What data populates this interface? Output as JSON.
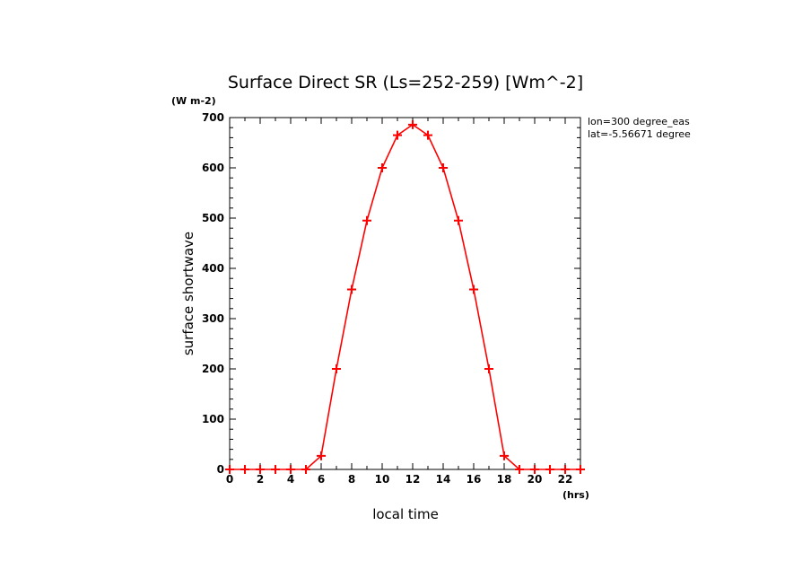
{
  "chart_data": {
    "type": "line",
    "title": "Surface Direct SR (Ls=252-259) [Wm^-2]",
    "y_unit": "(W m-2)",
    "x_unit": "(hrs)",
    "xlabel": "local time",
    "ylabel": "surface shortwave",
    "xlim": [
      0,
      23
    ],
    "ylim": [
      0,
      700
    ],
    "x_ticks": [
      0,
      2,
      4,
      6,
      8,
      10,
      12,
      14,
      16,
      18,
      20,
      22
    ],
    "y_ticks": [
      0,
      100,
      200,
      300,
      400,
      500,
      600,
      700
    ],
    "annotations": [
      "lon=300 degree_eas",
      "lat=-5.56671 degree"
    ],
    "grid": false,
    "series": [
      {
        "color": "#ff0000",
        "marker": "plus",
        "x": [
          0,
          1,
          2,
          3,
          4,
          5,
          6,
          7,
          8,
          9,
          10,
          11,
          12,
          13,
          14,
          15,
          16,
          17,
          18,
          19,
          20,
          21,
          22,
          23
        ],
        "values": [
          0,
          0,
          0,
          0,
          0,
          0,
          27,
          200,
          358,
          495,
          600,
          665,
          686,
          665,
          600,
          495,
          358,
          200,
          27,
          0,
          0,
          0,
          0,
          0
        ]
      }
    ]
  }
}
